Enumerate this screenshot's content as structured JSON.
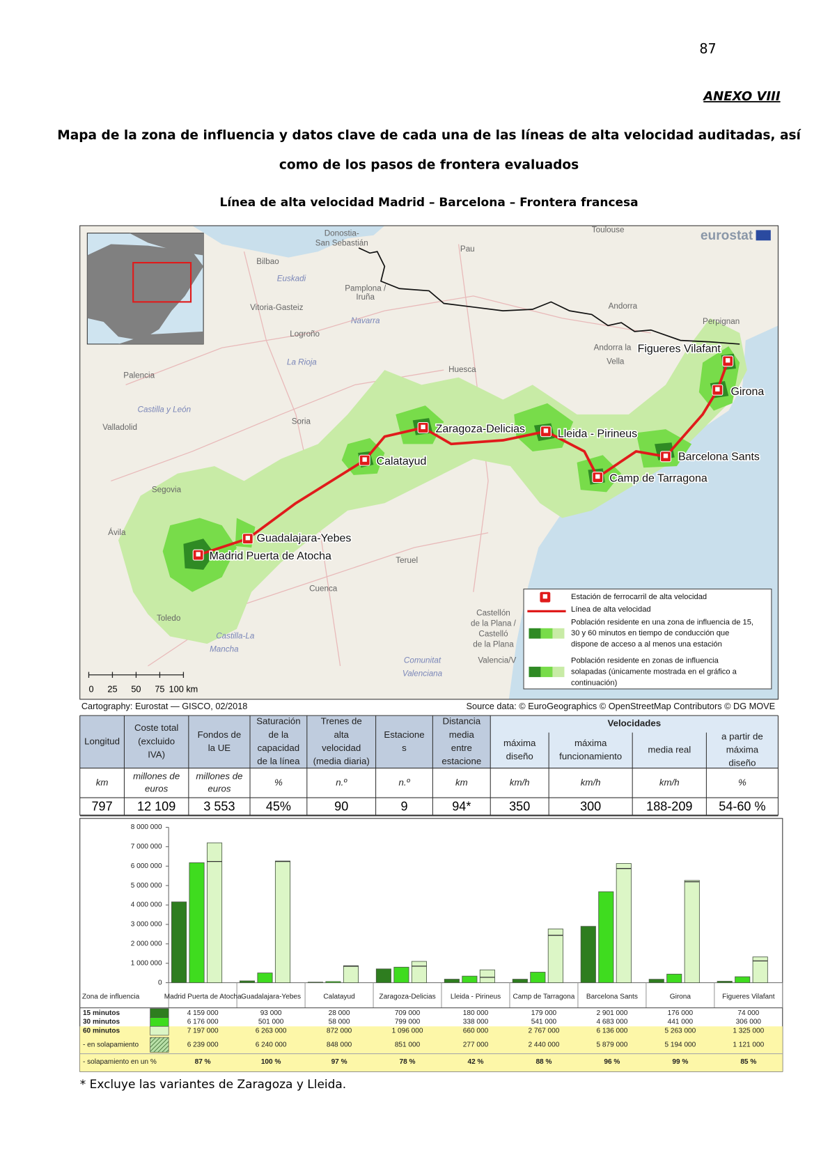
{
  "page_number": "87",
  "annex": "ANEXO VIII",
  "title": [
    "Mapa de la zona de influencia y datos clave de cada una de las líneas de alta velocidad auditadas, así",
    "como de los pasos de frontera evaluados"
  ],
  "subtitle": "Línea de alta velocidad Madrid – Barcelona – Frontera francesa",
  "map": {
    "logo": "eurostat",
    "stations": [
      "Madrid Puerta de Atocha",
      "Guadalajara-Yebes",
      "Calatayud",
      "Zaragoza-Delicias",
      "Lleida - Pirineus",
      "Camp de Tarragona",
      "Barcelona Sants",
      "Girona",
      "Figueres Vilafant"
    ],
    "places": [
      "Donostia-",
      "San Sebastián",
      "Toulouse",
      "Pau",
      "Bilbao",
      "Euskadi",
      "Pamplona /",
      "Iruña",
      "Navarra",
      "Vitoria-Gasteiz",
      "Logroño",
      "La Rioja",
      "Andorra",
      "Andorra la",
      "Vella",
      "Palencia",
      "Castilla y León",
      "Valladolid",
      "Soria",
      "Huesca",
      "Segovia",
      "Ávila",
      "Teruel",
      "Cuenca",
      "Toledo",
      "Castilla-La",
      "Mancha",
      "Castellón",
      "de la Plana /",
      "Castelló",
      "de la Plana",
      "Comunitat",
      "Valenciana",
      "Valencia/V",
      "Perpignan"
    ],
    "scale": [
      "0",
      "25",
      "50",
      "75",
      "100 km"
    ],
    "legend": [
      [
        "Estación de ferrocarril de alta velocidad"
      ],
      [
        "Línea de alta velocidad"
      ],
      [
        "Población residente en una zona de influencia de 15,",
        "30 y 60 minutos en tiempo de conducción que",
        "dispone de acceso a al menos una estación"
      ],
      [
        "Población residente en zonas de influencia",
        "solapadas (únicamente mostrada en el gráfico a",
        "continuación)"
      ]
    ],
    "cartography": "Cartography: Eurostat — GISCO, 02/2018",
    "source": "Source data: © EuroGeographics © OpenStreetMap Contributors © DG MOVE"
  },
  "table": {
    "group": "Velocidades",
    "header": [
      [
        "Longitud"
      ],
      [
        "Coste total",
        "(excluido",
        "IVA)"
      ],
      [
        "Fondos de",
        "la UE"
      ],
      [
        "Saturación",
        "de la",
        "capacidad",
        "de la línea"
      ],
      [
        "Trenes de",
        "alta",
        "velocidad",
        "(media diaria)"
      ],
      [
        "Estacione",
        "s"
      ],
      [
        "Distancia",
        "media",
        "entre",
        "estacione"
      ],
      [
        "máxima",
        "diseño"
      ],
      [
        "máxima",
        "funcionamiento"
      ],
      [
        "media real"
      ],
      [
        "a partir de",
        "máxima",
        "diseño"
      ]
    ],
    "units": [
      [
        "km"
      ],
      [
        "millones de",
        "euros"
      ],
      [
        "millones de",
        "euros"
      ],
      [
        "%"
      ],
      [
        "n.º"
      ],
      [
        "n.º"
      ],
      [
        "km"
      ],
      [
        "km/h"
      ],
      [
        "km/h"
      ],
      [
        "km/h"
      ],
      [
        "%"
      ]
    ],
    "values": [
      "797",
      "12 109",
      "3 553",
      "45%",
      "90",
      "9",
      "94*",
      "350",
      "300",
      "188-209",
      "54-60 %"
    ]
  },
  "chart_data": {
    "type": "bar",
    "zone_label": "Zona de influencia",
    "categories": [
      "Madrid Puerta de Atocha",
      "Guadalajara-Yebes",
      "Calatayud",
      "Zaragoza-Delicias",
      "Lleida - Pirineus",
      "Camp de Tarragona",
      "Barcelona Sants",
      "Girona",
      "Figueres Vilafant"
    ],
    "ylim": [
      0,
      8000000
    ],
    "yticks": [
      0,
      {
        "value": 1000000,
        "label": "1 000 000"
      },
      {
        "value": 2000000,
        "label": "2 000 000"
      },
      {
        "value": 3000000,
        "label": "3 000 000"
      },
      {
        "value": 4000000,
        "label": "4 000 000"
      },
      {
        "value": 5000000,
        "label": "5 000 000"
      },
      {
        "value": 6000000,
        "label": "6 000 000"
      },
      {
        "value": 7000000,
        "label": "7 000 000"
      },
      {
        "value": 8000000,
        "label": "8 000 000"
      }
    ],
    "series": [
      {
        "name": "15 minutos",
        "color": "#2e7d1f",
        "values": [
          4159000,
          93000,
          28000,
          709000,
          180000,
          179000,
          2901000,
          176000,
          74000
        ],
        "value_labels": [
          "4 159 000",
          "93 000",
          "28 000",
          "709 000",
          "180 000",
          "179 000",
          "2 901 000",
          "176 000",
          "74 000"
        ]
      },
      {
        "name": "30 minutos",
        "color": "#3fdc1f",
        "values": [
          6176000,
          501000,
          58000,
          799000,
          338000,
          541000,
          4683000,
          441000,
          306000
        ],
        "value_labels": [
          "6 176 000",
          "501 000",
          "58 000",
          "799 000",
          "338 000",
          "541 000",
          "4 683 000",
          "441 000",
          "306 000"
        ]
      },
      {
        "name": "60 minutos",
        "color": "#dcf6c6",
        "values": [
          7197000,
          6263000,
          872000,
          1096000,
          660000,
          2767000,
          6136000,
          5263000,
          1325000
        ],
        "value_labels": [
          "7 197 000",
          "6 263 000",
          "872 000",
          "1 096 000",
          "660 000",
          "2 767 000",
          "6 136 000",
          "5 263 000",
          "1 325 000"
        ]
      },
      {
        "name": "- en solapamiento",
        "color": "#6f9c62",
        "values": [
          6239000,
          6240000,
          848000,
          851000,
          277000,
          2440000,
          5879000,
          5194000,
          1121000
        ],
        "value_labels": [
          "6 239 000",
          "6 240 000",
          "848 000",
          "851 000",
          "277 000",
          "2 440 000",
          "5 879 000",
          "5 194 000",
          "1 121 000"
        ]
      }
    ],
    "overlap_percent": {
      "name": "- solapamiento en un %",
      "values": [
        87,
        100,
        97,
        78,
        42,
        88,
        96,
        99,
        85
      ],
      "value_labels": [
        "87 %",
        "100 %",
        "97 %",
        "78 %",
        "42 %",
        "88 %",
        "96 %",
        "99 %",
        "85 %"
      ]
    }
  },
  "footnote": "* Excluye las variantes de Zaragoza y Lleida."
}
